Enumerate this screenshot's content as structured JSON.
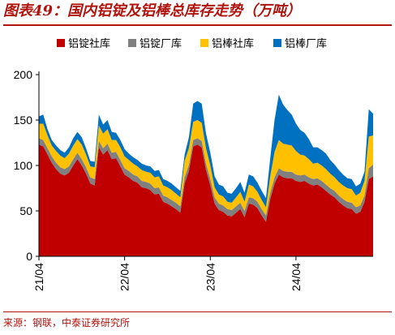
{
  "header": {
    "title": "图表49：国内铝锭及铝棒总库存走势（万吨）"
  },
  "footer": {
    "source": "来源：钢联，中泰证券研究所"
  },
  "chart_data": {
    "type": "area",
    "stacked": true,
    "legend_position": "top",
    "grid": false,
    "ylim": [
      0,
      200
    ],
    "yticks": [
      0,
      50,
      100,
      150,
      200
    ],
    "xlim": [
      2021.0,
      2024.9
    ],
    "xticks": [
      {
        "x": 2021.0,
        "label": "21/04"
      },
      {
        "x": 2022.0,
        "label": "22/04"
      },
      {
        "x": 2023.0,
        "label": "23/04"
      },
      {
        "x": 2024.0,
        "label": "24/04"
      }
    ],
    "colors": [
      "#c00000",
      "#808080",
      "#ffc000",
      "#0070c0"
    ],
    "x": [
      2021.0,
      2021.05,
      2021.1,
      2021.15,
      2021.2,
      2021.25,
      2021.3,
      2021.35,
      2021.4,
      2021.45,
      2021.5,
      2021.55,
      2021.6,
      2021.65,
      2021.7,
      2021.75,
      2021.8,
      2021.85,
      2021.9,
      2021.95,
      2022.0,
      2022.05,
      2022.1,
      2022.15,
      2022.2,
      2022.25,
      2022.3,
      2022.35,
      2022.4,
      2022.45,
      2022.5,
      2022.55,
      2022.6,
      2022.65,
      2022.7,
      2022.75,
      2022.8,
      2022.85,
      2022.9,
      2022.95,
      2023.0,
      2023.05,
      2023.1,
      2023.15,
      2023.2,
      2023.25,
      2023.3,
      2023.35,
      2023.4,
      2023.45,
      2023.5,
      2023.55,
      2023.6,
      2023.65,
      2023.7,
      2023.75,
      2023.8,
      2023.85,
      2023.9,
      2023.95,
      2024.0,
      2024.05,
      2024.1,
      2024.15,
      2024.2,
      2024.25,
      2024.3,
      2024.35,
      2024.4,
      2024.45,
      2024.5,
      2024.55,
      2024.6,
      2024.65,
      2024.7,
      2024.75,
      2024.8,
      2024.85,
      2024.9
    ],
    "series": [
      {
        "name": "铝锭社库",
        "values": [
          123,
          121,
          112,
          103,
          96,
          91,
          89,
          92,
          100,
          107,
          100,
          91,
          80,
          78,
          120,
          112,
          117,
          107,
          108,
          99,
          90,
          87,
          83,
          81,
          76,
          75,
          73,
          68,
          69,
          60,
          58,
          55,
          52,
          48,
          80,
          94,
          121,
          123,
          120,
          95,
          78,
          58,
          51,
          49,
          45,
          44,
          48,
          52,
          43,
          58,
          57,
          53,
          45,
          38,
          63,
          80,
          90,
          87,
          86,
          86,
          83,
          82,
          83,
          80,
          78,
          79,
          76,
          72,
          68,
          65,
          60,
          56,
          53,
          52,
          47,
          49,
          60,
          85,
          88
        ]
      },
      {
        "name": "铝锭厂库",
        "values": [
          7,
          7,
          7,
          7,
          7,
          7,
          7,
          7,
          7,
          7,
          7,
          7,
          7,
          7,
          7,
          7,
          7,
          7,
          7,
          7,
          7,
          7,
          7,
          7,
          7,
          7,
          7,
          7,
          7,
          7,
          7,
          7,
          7,
          7,
          7,
          7,
          7,
          7,
          7,
          7,
          7,
          7,
          7,
          7,
          7,
          7,
          7,
          7,
          7,
          7,
          7,
          7,
          7,
          7,
          7,
          7,
          7,
          7,
          7,
          7,
          7,
          7,
          7,
          7,
          7,
          7,
          7,
          7,
          7,
          7,
          7,
          7,
          7,
          7,
          7,
          7,
          7,
          12,
          13
        ]
      },
      {
        "name": "铝棒社库",
        "values": [
          16,
          18,
          14,
          12,
          13,
          13,
          12,
          14,
          15,
          15,
          16,
          14,
          12,
          13,
          17,
          16,
          16,
          14,
          13,
          14,
          13,
          12,
          12,
          11,
          12,
          11,
          12,
          12,
          12,
          11,
          11,
          11,
          10,
          10,
          18,
          18,
          20,
          20,
          20,
          17,
          15,
          11,
          10,
          10,
          8,
          8,
          10,
          12,
          10,
          14,
          13,
          11,
          10,
          9,
          18,
          28,
          31,
          30,
          30,
          29,
          26,
          23,
          21,
          20,
          17,
          17,
          17,
          17,
          16,
          15,
          15,
          15,
          15,
          15,
          13,
          14,
          16,
          35,
          32
        ]
      },
      {
        "name": "铝棒厂库",
        "values": [
          8,
          10,
          7,
          6,
          6,
          6,
          6,
          7,
          8,
          8,
          8,
          7,
          6,
          6,
          12,
          10,
          10,
          9,
          8,
          8,
          8,
          7,
          7,
          7,
          7,
          7,
          7,
          7,
          7,
          7,
          7,
          7,
          7,
          7,
          7,
          12,
          20,
          21,
          21,
          16,
          14,
          12,
          11,
          11,
          10,
          10,
          10,
          11,
          10,
          11,
          11,
          10,
          10,
          10,
          20,
          35,
          50,
          43,
          38,
          34,
          30,
          27,
          25,
          22,
          18,
          17,
          17,
          17,
          15,
          14,
          13,
          12,
          11,
          11,
          10,
          10,
          10,
          30,
          24
        ]
      }
    ]
  }
}
